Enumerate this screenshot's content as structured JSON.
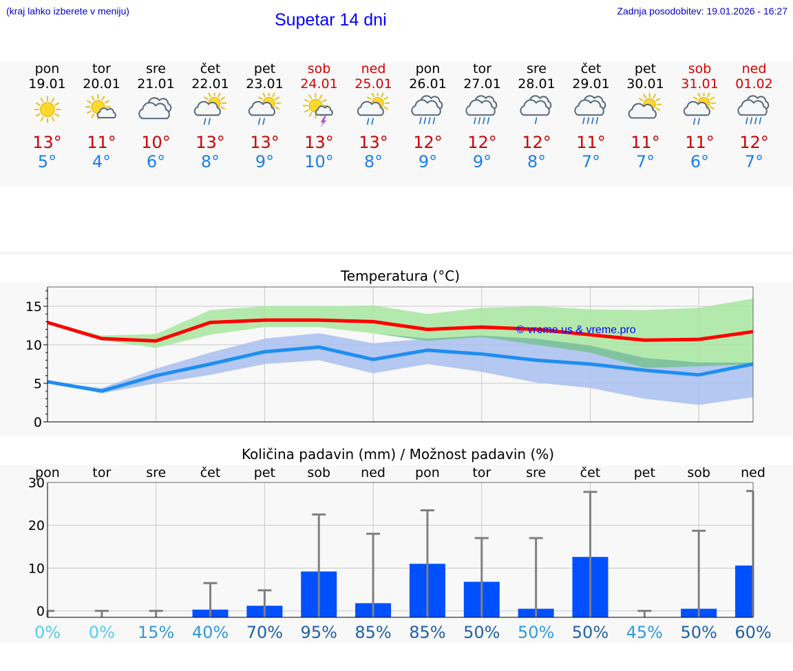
{
  "header": {
    "location_hint": "(kraj lahko izberete v meniju)",
    "title": "Supetar 14 dni",
    "updated": "Zadnja posodobitev: 19.01.2026 - 16:27"
  },
  "days": [
    {
      "name": "pon",
      "date": "19.01",
      "icon": "sun-icon",
      "tmax": "13°",
      "tmin": "5°",
      "weekend": false
    },
    {
      "name": "tor",
      "date": "20.01",
      "icon": "sun-small-cloud-icon",
      "tmax": "11°",
      "tmin": "4°",
      "weekend": false
    },
    {
      "name": "sre",
      "date": "21.01",
      "icon": "cloudy-icon",
      "tmax": "10°",
      "tmin": "6°",
      "weekend": false
    },
    {
      "name": "čet",
      "date": "22.01",
      "icon": "sun-cloud-light-rain-icon",
      "tmax": "13°",
      "tmin": "8°",
      "weekend": false
    },
    {
      "name": "pet",
      "date": "23.01",
      "icon": "sun-cloud-light-rain-icon",
      "tmax": "13°",
      "tmin": "9°",
      "weekend": false
    },
    {
      "name": "sob",
      "date": "24.01",
      "icon": "sun-cloud-thunder-icon",
      "tmax": "13°",
      "tmin": "10°",
      "weekend": true
    },
    {
      "name": "ned",
      "date": "25.01",
      "icon": "sun-cloud-light-rain-icon",
      "tmax": "13°",
      "tmin": "8°",
      "weekend": true
    },
    {
      "name": "pon",
      "date": "26.01",
      "icon": "cloud-rain-icon",
      "tmax": "12°",
      "tmin": "9°",
      "weekend": false
    },
    {
      "name": "tor",
      "date": "27.01",
      "icon": "cloud-rain-icon",
      "tmax": "12°",
      "tmin": "9°",
      "weekend": false
    },
    {
      "name": "sre",
      "date": "28.01",
      "icon": "cloud-light-rain-icon",
      "tmax": "12°",
      "tmin": "8°",
      "weekend": false
    },
    {
      "name": "čet",
      "date": "29.01",
      "icon": "cloud-rain-icon",
      "tmax": "11°",
      "tmin": "7°",
      "weekend": false
    },
    {
      "name": "pet",
      "date": "30.01",
      "icon": "sun-cloud-icon",
      "tmax": "11°",
      "tmin": "7°",
      "weekend": false
    },
    {
      "name": "sob",
      "date": "31.01",
      "icon": "sun-cloud-light-rain-icon",
      "tmax": "11°",
      "tmin": "6°",
      "weekend": true
    },
    {
      "name": "ned",
      "date": "01.02",
      "icon": "cloud-rain-icon",
      "tmax": "12°",
      "tmin": "7°",
      "weekend": true
    }
  ],
  "colors": {
    "max_line": "#ff0000",
    "max_band": "#a8e6a0",
    "min_line": "#1e8ef0",
    "min_band": "#a8c0f0",
    "overlap_band": "#7cc0a0",
    "bar": "#0050ff",
    "whisker": "#808080",
    "prob_low": "#55ccee",
    "prob_mid": "#3399dd",
    "prob_high": "#2060a8"
  },
  "chart_data": [
    {
      "type": "line",
      "title": "Temperatura (°C)",
      "watermark": "© vreme.us & vreme.pro",
      "x": [
        0,
        1,
        2,
        3,
        4,
        5,
        6,
        7,
        8,
        9,
        10,
        11,
        12,
        13
      ],
      "ylim": [
        0,
        17.5
      ],
      "yticks": [
        0,
        5,
        10,
        15
      ],
      "grid": true,
      "series": [
        {
          "name": "max",
          "values": [
            12.9,
            10.8,
            10.5,
            12.9,
            13.2,
            13.2,
            13.0,
            12.0,
            12.3,
            12.0,
            11.3,
            10.6,
            10.7,
            11.7
          ],
          "band_low": [
            12.9,
            10.6,
            9.6,
            11.3,
            12.3,
            12.3,
            11.5,
            10.5,
            11.0,
            10.0,
            9.0,
            7.0,
            7.2,
            7.5
          ],
          "band_high": [
            12.9,
            11.2,
            11.4,
            14.5,
            15.0,
            15.0,
            15.1,
            14.0,
            14.8,
            15.0,
            14.6,
            14.5,
            14.8,
            16.0
          ]
        },
        {
          "name": "min",
          "values": [
            5.2,
            4.0,
            6.0,
            7.5,
            9.1,
            9.7,
            8.1,
            9.3,
            8.8,
            8.0,
            7.5,
            6.7,
            6.1,
            7.5
          ],
          "band_low": [
            5.2,
            3.7,
            5.0,
            6.1,
            7.5,
            8.0,
            6.3,
            7.5,
            6.5,
            5.1,
            4.4,
            3.0,
            2.2,
            3.2
          ],
          "band_high": [
            5.2,
            4.4,
            6.9,
            9.0,
            10.8,
            11.5,
            10.2,
            10.8,
            11.2,
            10.8,
            9.9,
            8.3,
            7.7,
            7.7
          ]
        }
      ]
    },
    {
      "type": "bar",
      "title": "Količina padavin (mm) / Možnost padavin (%)",
      "categories": [
        "pon",
        "tor",
        "sre",
        "čet",
        "pet",
        "sob",
        "ned",
        "pon",
        "tor",
        "sre",
        "čet",
        "pet",
        "sob",
        "ned"
      ],
      "values": [
        0,
        0,
        0,
        0.3,
        1.2,
        9.2,
        1.8,
        11.0,
        6.8,
        0.5,
        12.6,
        0,
        0.5,
        10.6
      ],
      "whisker_high": [
        0,
        0,
        0,
        6.5,
        4.8,
        22.5,
        18.0,
        23.5,
        17.0,
        17.0,
        27.8,
        0,
        18.7,
        28.0
      ],
      "probabilities": [
        "0%",
        "0%",
        "15%",
        "40%",
        "70%",
        "95%",
        "85%",
        "85%",
        "50%",
        "50%",
        "50%",
        "45%",
        "50%",
        "60%"
      ],
      "prob_tier": [
        "low",
        "low",
        "mid",
        "mid",
        "high",
        "high",
        "high",
        "high",
        "high",
        "mid",
        "high",
        "mid",
        "high",
        "high"
      ],
      "ylim": [
        -1.5,
        30
      ],
      "yticks": [
        0,
        10,
        20,
        30
      ],
      "ylabels": [
        "0",
        "10",
        "20",
        "30"
      ]
    }
  ]
}
